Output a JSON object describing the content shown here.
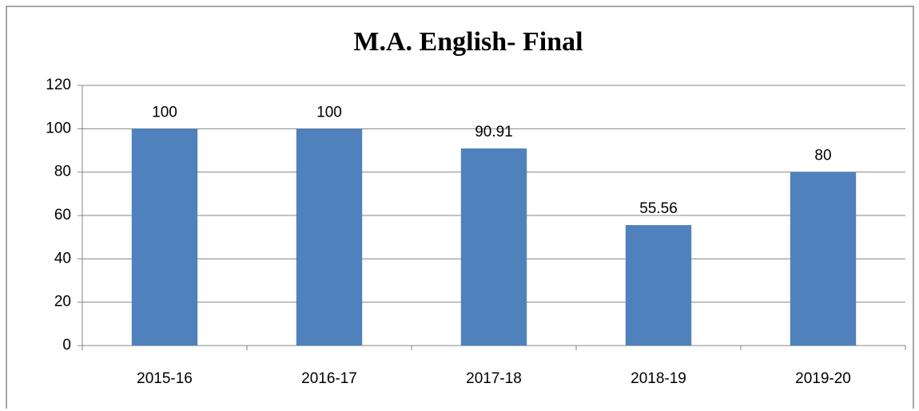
{
  "chart_data": {
    "type": "bar",
    "title": "M.A. English- Final",
    "categories": [
      "2015-16",
      "2016-17",
      "2017-18",
      "2018-19",
      "2019-20"
    ],
    "values": [
      100,
      100,
      90.91,
      55.56,
      80
    ],
    "color": "#4f81bd",
    "ylim": [
      0,
      120
    ],
    "yticks": [
      0,
      20,
      40,
      60,
      80,
      100,
      120
    ],
    "grid": true,
    "data_labels": true
  }
}
